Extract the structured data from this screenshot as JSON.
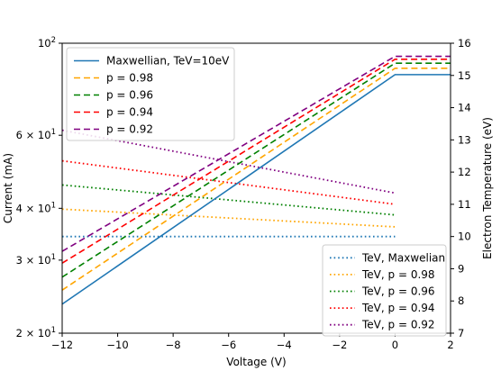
{
  "chart_data": {
    "type": "line",
    "title": "",
    "xlabel": "Voltage (V)",
    "ylabel": "Current (mA)",
    "y2label": "Electron Temperature (eV)",
    "xlim": [
      -12,
      2
    ],
    "ylim": [
      20,
      100
    ],
    "yscale": "log",
    "y2lim": [
      7,
      16
    ],
    "grid": false,
    "x_ticks": [
      -12,
      -10,
      -8,
      -6,
      -4,
      -2,
      0,
      2
    ],
    "x_tick_labels": [
      "−12",
      "−10",
      "−8",
      "−6",
      "−4",
      "−2",
      "0",
      "2"
    ],
    "y_ticks": [
      20,
      30,
      40,
      60,
      100
    ],
    "y_tick_labels": [
      {
        "mant": "2 × 10",
        "exp": "1"
      },
      {
        "mant": "3 × 10",
        "exp": "1"
      },
      {
        "mant": "4 × 10",
        "exp": "1"
      },
      {
        "mant": "6 × 10",
        "exp": "1"
      },
      {
        "mant": "10",
        "exp": "2"
      }
    ],
    "y2_ticks": [
      7,
      8,
      9,
      10,
      11,
      12,
      13,
      14,
      15,
      16
    ],
    "y2_tick_labels": [
      "7",
      "8",
      "9",
      "10",
      "11",
      "12",
      "13",
      "14",
      "15",
      "16"
    ],
    "current_series": [
      {
        "name": "Maxwellian, TeV=10eV",
        "color": "#1f77b4",
        "dash": "solid",
        "x": [
          -12,
          0,
          2
        ],
        "y": [
          23.5,
          84,
          84
        ]
      },
      {
        "name": "p = 0.98",
        "color": "#ffa500",
        "dash": "dashed",
        "x": [
          -12,
          0,
          2
        ],
        "y": [
          25.4,
          87,
          87
        ]
      },
      {
        "name": "p = 0.96",
        "color": "#008000",
        "dash": "dashed",
        "x": [
          -12,
          0,
          2
        ],
        "y": [
          27.3,
          89.5,
          89.5
        ]
      },
      {
        "name": "p = 0.94",
        "color": "#ff0000",
        "dash": "dashed",
        "x": [
          -12,
          0,
          2
        ],
        "y": [
          29.5,
          91.5,
          91.5
        ]
      },
      {
        "name": "p = 0.92",
        "color": "#800080",
        "dash": "dashed",
        "x": [
          -12,
          0,
          2
        ],
        "y": [
          31.5,
          93,
          93
        ]
      }
    ],
    "temperature_series": [
      {
        "name": "TeV, Maxwelian",
        "color": "#1f77b4",
        "dash": "dotted",
        "x": [
          -12,
          0
        ],
        "y": [
          10.0,
          10.0
        ]
      },
      {
        "name": "TeV, p = 0.98",
        "color": "#ffa500",
        "dash": "dotted",
        "x": [
          -12,
          0
        ],
        "y": [
          10.85,
          10.3
        ]
      },
      {
        "name": "TeV, p = 0.96",
        "color": "#008000",
        "dash": "dotted",
        "x": [
          -12,
          0
        ],
        "y": [
          11.6,
          10.67
        ]
      },
      {
        "name": "TeV, p = 0.94",
        "color": "#ff0000",
        "dash": "dotted",
        "x": [
          -12,
          0
        ],
        "y": [
          12.35,
          11.0
        ]
      },
      {
        "name": "TeV, p = 0.92",
        "color": "#800080",
        "dash": "dotted",
        "x": [
          -12,
          0
        ],
        "y": [
          13.3,
          11.35
        ]
      }
    ],
    "legend_current_position": "upper-left",
    "legend_temperature_position": "lower-right"
  }
}
